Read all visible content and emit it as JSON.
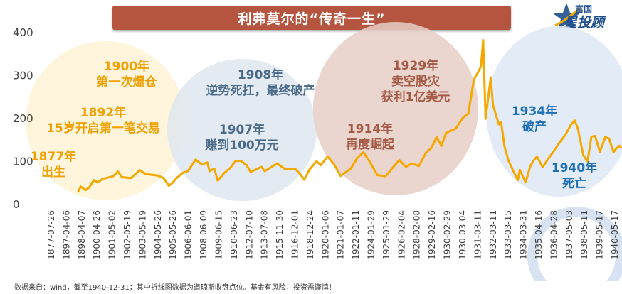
{
  "title": "利弗莫尔的“传奇一生”",
  "logo": {
    "line1": "富国",
    "line2": "星投顾"
  },
  "footnote": "数据来自：wind，截至1940-12-31；其中折线图数据为道琼斯收盘点位。基金有风险，投资需谨慎！",
  "colors": {
    "line": "#f5a800",
    "title_bar": "#b5553f",
    "orange_text": "#f0a000",
    "blue_text": "#1f6fb5",
    "slate_text": "#4a6a8a",
    "brown_text": "#a55a45"
  },
  "annotations": [
    {
      "id": "a1877",
      "lines": [
        "1877年",
        "出生"
      ],
      "color": "orange"
    },
    {
      "id": "a1892",
      "lines": [
        "1892年",
        "15岁开启第一笔交易"
      ],
      "color": "orange"
    },
    {
      "id": "a1900",
      "lines": [
        "1900年",
        "第一次爆仓"
      ],
      "color": "orange"
    },
    {
      "id": "a1907",
      "lines": [
        "1907年",
        "赚到100万元"
      ],
      "color": "slate"
    },
    {
      "id": "a1908",
      "lines": [
        "1908年",
        "逆势死扛，最终破产"
      ],
      "color": "slate"
    },
    {
      "id": "a1914",
      "lines": [
        "1914年",
        "再度崛起"
      ],
      "color": "brown"
    },
    {
      "id": "a1929",
      "lines": [
        "1929年",
        "卖空股灾",
        "获利1亿美元"
      ],
      "color": "brown"
    },
    {
      "id": "a1934",
      "lines": [
        "1934年",
        "破产"
      ],
      "color": "blue"
    },
    {
      "id": "a1940",
      "lines": [
        "1940年",
        "死亡"
      ],
      "color": "blue"
    }
  ],
  "chart_data": {
    "type": "line",
    "title": "",
    "xlabel": "",
    "ylabel": "",
    "ylim": [
      0,
      400
    ],
    "yticks": [
      0,
      100,
      200,
      300,
      400
    ],
    "grid": false,
    "x_ticks": [
      "1877-07-26",
      "1897-04-06",
      "1898-04-07",
      "1900-04-26",
      "1901-05-02",
      "1902-05-19",
      "1903-05-19",
      "1904-05-26",
      "1905-05-26",
      "1906-06-01",
      "1908-06-09",
      "1909-06-15",
      "1910-06-23",
      "1912-07-10",
      "1913-07-08",
      "1915-11-30",
      "1916-12-01",
      "1918-12-24",
      "1920-01-06",
      "1921-01-07",
      "1922-01-11",
      "1924-01-29",
      "1925-01-29",
      "1926-02-04",
      "1928-02-08",
      "1929-02-16",
      "1930-02-29",
      "1930-03-04",
      "1931-03-11",
      "1932-03-11",
      "1933-03-15",
      "1934-03-31",
      "1935-04-16",
      "1936-04-28",
      "1937-05-03",
      "1938-05-11",
      "1939-05-17",
      "1940-05-17"
    ],
    "series": [
      {
        "x": [
          "1896-05-26",
          "1896-08-10",
          "1897-01-01",
          "1897-04-19",
          "1897-09-10",
          "1898-01-01",
          "1898-06-01",
          "1899-04-04",
          "1899-09-01",
          "1900-01-01",
          "1900-09-24",
          "1901-06-17",
          "1901-12-01",
          "1902-04-24",
          "1902-12-01",
          "1903-06-01",
          "1903-11-09",
          "1904-03-12",
          "1904-06-01",
          "1905-01-01",
          "1905-06-01",
          "1906-01-19",
          "1906-07-13",
          "1907-01-07",
          "1907-03-14",
          "1907-08-01",
          "1907-11-15",
          "1908-06-01",
          "1908-12-01",
          "1909-05-01",
          "1909-10-02",
          "1910-04-01",
          "1910-07-26",
          "1911-06-19",
          "1911-09-25",
          "1912-09-30",
          "1913-06-11",
          "1914-03-20",
          "1914-07-30",
          "1914-12-24",
          "1915-06-01",
          "1915-12-27",
          "1916-05-01",
          "1916-11-21",
          "1917-06-01",
          "1917-12-19",
          "1918-10-18",
          "1919-05-01",
          "1919-11-03",
          "1920-06-01",
          "1920-12-21",
          "1921-08-24",
          "1922-06-01",
          "1922-10-14",
          "1923-05-01",
          "1923-10-27",
          "1924-05-20",
          "1924-12-31",
          "1925-06-01",
          "1925-11-06",
          "1926-03-30",
          "1926-08-14",
          "1927-06-01",
          "1927-12-31",
          "1928-06-12",
          "1928-11-30",
          "1929-03-25",
          "1929-06-30",
          "1929-09-03",
          "1929-11-13",
          "1930-04-17",
          "1930-06-24",
          "1930-12-16",
          "1931-02-24",
          "1931-06-02",
          "1931-10-05",
          "1932-03-08",
          "1932-07-08",
          "1932-09-07",
          "1933-02-27",
          "1933-07-18",
          "1933-10-21",
          "1934-02-05",
          "1934-07-26",
          "1934-12-31",
          "1935-06-01",
          "1935-12-31",
          "1936-06-01",
          "1936-11-17",
          "1937-03-10",
          "1937-06-14",
          "1937-11-24",
          "1938-03-31",
          "1938-07-25",
          "1938-11-12",
          "1939-04-08",
          "1939-09-12",
          "1940-01-03",
          "1940-05-21",
          "1940-07-31",
          "1940-11-09",
          "1940-12-31"
        ],
        "y": [
          28,
          40,
          32,
          38,
          55,
          50,
          58,
          64,
          75,
          62,
          60,
          78,
          70,
          68,
          66,
          60,
          42,
          50,
          58,
          72,
          76,
          103,
          92,
          96,
          76,
          82,
          54,
          72,
          84,
          100,
          100,
          90,
          74,
          86,
          76,
          94,
          80,
          82,
          71,
          56,
          80,
          99,
          90,
          110,
          92,
          65,
          82,
          107,
          120,
          95,
          67,
          64,
          90,
          102,
          86,
          94,
          88,
          120,
          130,
          155,
          135,
          165,
          175,
          200,
          210,
          290,
          305,
          320,
          381,
          198,
          294,
          230,
          185,
          190,
          134,
          100,
          74,
          55,
          79,
          50,
          88,
          100,
          110,
          85,
          104,
          120,
          145,
          160,
          184,
          194,
          175,
          113,
          99,
          156,
          158,
          121,
          155,
          152,
          120,
          128,
          135,
          131
        ]
      }
    ]
  }
}
